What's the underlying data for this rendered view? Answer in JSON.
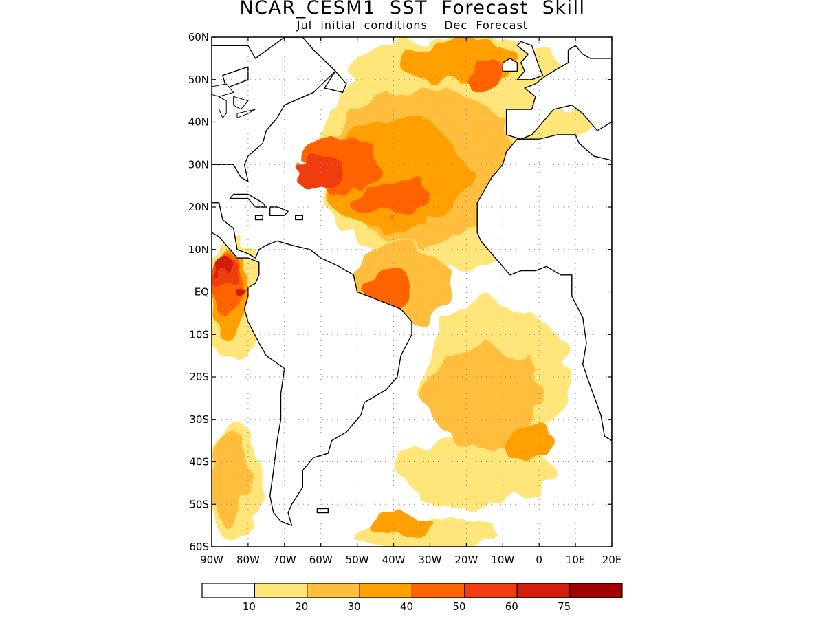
{
  "header": {
    "title": "NCAR_CESM1  SST  Forecast  Skill",
    "subtitle": "Jul  initial  conditions    Dec  Forecast"
  },
  "map": {
    "lon_range": [
      -90,
      20
    ],
    "lat_range": [
      -60,
      60
    ],
    "lat_ticks": [
      {
        "value": 60,
        "label": "60N"
      },
      {
        "value": 50,
        "label": "50N"
      },
      {
        "value": 40,
        "label": "40N"
      },
      {
        "value": 30,
        "label": "30N"
      },
      {
        "value": 20,
        "label": "20N"
      },
      {
        "value": 10,
        "label": "10N"
      },
      {
        "value": 0,
        "label": "EQ"
      },
      {
        "value": -10,
        "label": "10S"
      },
      {
        "value": -20,
        "label": "20S"
      },
      {
        "value": -30,
        "label": "30S"
      },
      {
        "value": -40,
        "label": "40S"
      },
      {
        "value": -50,
        "label": "50S"
      },
      {
        "value": -60,
        "label": "60S"
      }
    ],
    "lon_ticks": [
      {
        "value": -90,
        "label": "90W"
      },
      {
        "value": -80,
        "label": "80W"
      },
      {
        "value": -70,
        "label": "70W"
      },
      {
        "value": -60,
        "label": "60W"
      },
      {
        "value": -50,
        "label": "50W"
      },
      {
        "value": -40,
        "label": "40W"
      },
      {
        "value": -30,
        "label": "30W"
      },
      {
        "value": -20,
        "label": "20W"
      },
      {
        "value": -10,
        "label": "10W"
      },
      {
        "value": 0,
        "label": "0"
      },
      {
        "value": 10,
        "label": "10E"
      },
      {
        "value": 20,
        "label": "20E"
      }
    ],
    "grid": "dotted"
  },
  "colorbar": {
    "levels": [
      "10",
      "20",
      "30",
      "40",
      "50",
      "60",
      "75"
    ],
    "colors": [
      "#ffffff",
      "#ffe57a",
      "#ffbe3c",
      "#ffa000",
      "#ff6400",
      "#f03c10",
      "#d21e0a",
      "#a00000"
    ]
  },
  "skill_regions": [
    {
      "level": 1,
      "lon": -27,
      "lat": 31,
      "rx": 34,
      "ry": 26
    },
    {
      "level": 1,
      "lon": -22,
      "lat": 52,
      "rx": 30,
      "ry": 8
    },
    {
      "level": 1,
      "lon": -12,
      "lat": -20,
      "rx": 20,
      "ry": 18
    },
    {
      "level": 1,
      "lon": -18,
      "lat": -42,
      "rx": 22,
      "ry": 8
    },
    {
      "level": 1,
      "lon": -30,
      "lat": -57,
      "rx": 20,
      "ry": 4
    },
    {
      "level": 1,
      "lon": -84,
      "lat": -2,
      "rx": 8,
      "ry": 14
    },
    {
      "level": 1,
      "lon": -84,
      "lat": -45,
      "rx": 7,
      "ry": 14
    },
    {
      "level": 1,
      "lon": 5,
      "lat": 40,
      "rx": 10,
      "ry": 4
    },
    {
      "level": 2,
      "lon": -32,
      "lat": 30,
      "rx": 26,
      "ry": 18
    },
    {
      "level": 2,
      "lon": -15,
      "lat": -25,
      "rx": 16,
      "ry": 12
    },
    {
      "level": 2,
      "lon": -38,
      "lat": 2,
      "rx": 14,
      "ry": 10
    },
    {
      "level": 2,
      "lon": -85,
      "lat": -44,
      "rx": 5,
      "ry": 11
    },
    {
      "level": 3,
      "lon": -40,
      "lat": 28,
      "rx": 20,
      "ry": 13
    },
    {
      "level": 3,
      "lon": -22,
      "lat": 54,
      "rx": 16,
      "ry": 5
    },
    {
      "level": 3,
      "lon": -85,
      "lat": 0,
      "rx": 5,
      "ry": 10
    },
    {
      "level": 3,
      "lon": -3,
      "lat": -36,
      "rx": 7,
      "ry": 4
    },
    {
      "level": 3,
      "lon": -37,
      "lat": -55,
      "rx": 8,
      "ry": 3
    },
    {
      "level": 4,
      "lon": -55,
      "lat": 30,
      "rx": 10,
      "ry": 7
    },
    {
      "level": 4,
      "lon": -40,
      "lat": 22,
      "rx": 10,
      "ry": 4
    },
    {
      "level": 4,
      "lon": -15,
      "lat": 51,
      "rx": 5,
      "ry": 4
    },
    {
      "level": 4,
      "lon": -42,
      "lat": 0,
      "rx": 6,
      "ry": 5
    },
    {
      "level": 4,
      "lon": -86,
      "lat": 2,
      "rx": 4,
      "ry": 7
    },
    {
      "level": 5,
      "lon": -60,
      "lat": 28,
      "rx": 6,
      "ry": 4
    },
    {
      "level": 5,
      "lon": -86,
      "lat": 4,
      "rx": 3,
      "ry": 3
    },
    {
      "level": 6,
      "lon": -87,
      "lat": 6,
      "rx": 2,
      "ry": 2
    },
    {
      "level": 6,
      "lon": -83,
      "lat": 0,
      "rx": 1.5,
      "ry": 1
    }
  ],
  "land_polygons": [
    [
      [
        -90,
        58
      ],
      [
        -80,
        58
      ],
      [
        -78,
        55
      ],
      [
        -70,
        60
      ],
      [
        -65,
        60
      ],
      [
        -62,
        57
      ],
      [
        -56,
        52
      ],
      [
        -62,
        47
      ],
      [
        -70,
        44
      ],
      [
        -72,
        41
      ],
      [
        -75,
        38
      ],
      [
        -76,
        35
      ],
      [
        -80,
        32
      ],
      [
        -81,
        30
      ],
      [
        -80,
        26
      ],
      [
        -82,
        27
      ],
      [
        -84,
        30
      ],
      [
        -90,
        30
      ]
    ],
    [
      [
        -90,
        21
      ],
      [
        -88,
        21
      ],
      [
        -87,
        17
      ],
      [
        -84,
        15
      ],
      [
        -83,
        10
      ],
      [
        -80,
        9
      ],
      [
        -78,
        8
      ],
      [
        -77,
        10
      ],
      [
        -75,
        11
      ],
      [
        -72,
        12
      ],
      [
        -68,
        11
      ],
      [
        -63,
        10
      ],
      [
        -60,
        8
      ],
      [
        -55,
        6
      ],
      [
        -51,
        4
      ],
      [
        -50,
        0
      ],
      [
        -44,
        -2
      ],
      [
        -38,
        -4
      ],
      [
        -35,
        -7
      ],
      [
        -35,
        -10
      ],
      [
        -38,
        -15
      ],
      [
        -39,
        -20
      ],
      [
        -42,
        -23
      ],
      [
        -48,
        -26
      ],
      [
        -49,
        -29
      ],
      [
        -53,
        -33
      ],
      [
        -57,
        -35
      ],
      [
        -58,
        -38
      ],
      [
        -62,
        -39
      ],
      [
        -65,
        -42
      ],
      [
        -65,
        -46
      ],
      [
        -68,
        -50
      ],
      [
        -69,
        -52
      ],
      [
        -68,
        -55
      ],
      [
        -71,
        -54
      ],
      [
        -73,
        -52
      ],
      [
        -74,
        -48
      ],
      [
        -73,
        -42
      ],
      [
        -72,
        -35
      ],
      [
        -71,
        -30
      ],
      [
        -71,
        -24
      ],
      [
        -70,
        -18
      ],
      [
        -75,
        -15
      ],
      [
        -77,
        -12
      ],
      [
        -80,
        -7
      ],
      [
        -81,
        -4
      ],
      [
        -80,
        -1
      ],
      [
        -80,
        1
      ],
      [
        -78,
        2
      ],
      [
        -77,
        4
      ],
      [
        -77,
        7
      ],
      [
        -80,
        8
      ],
      [
        -83,
        8
      ],
      [
        -86,
        11
      ],
      [
        -88,
        13
      ],
      [
        -90,
        14
      ]
    ],
    [
      [
        -17,
        14
      ],
      [
        -17,
        21
      ],
      [
        -13,
        27
      ],
      [
        -10,
        30
      ],
      [
        -9,
        33
      ],
      [
        -6,
        36
      ],
      [
        0,
        36
      ],
      [
        5,
        37
      ],
      [
        10,
        37
      ],
      [
        11,
        35
      ],
      [
        15,
        32
      ],
      [
        20,
        31
      ],
      [
        20,
        -35
      ],
      [
        18,
        -34
      ],
      [
        17,
        -29
      ],
      [
        14,
        -22
      ],
      [
        12,
        -17
      ],
      [
        13,
        -12
      ],
      [
        12,
        -6
      ],
      [
        9,
        -1
      ],
      [
        9,
        4
      ],
      [
        6,
        4
      ],
      [
        2,
        6
      ],
      [
        -1,
        5
      ],
      [
        -5,
        5
      ],
      [
        -8,
        4
      ],
      [
        -11,
        7
      ],
      [
        -14,
        10
      ],
      [
        -16,
        12
      ]
    ],
    [
      [
        -9,
        37
      ],
      [
        -9,
        43
      ],
      [
        -2,
        43
      ],
      [
        -1,
        46
      ],
      [
        -4,
        48
      ],
      [
        -1,
        49
      ],
      [
        2,
        51
      ],
      [
        4,
        52
      ],
      [
        8,
        54
      ],
      [
        8,
        57
      ],
      [
        10,
        58
      ],
      [
        12,
        56
      ],
      [
        14,
        55
      ],
      [
        20,
        55
      ],
      [
        20,
        40
      ],
      [
        16,
        38
      ],
      [
        12,
        42
      ],
      [
        9,
        44
      ],
      [
        4,
        43
      ],
      [
        3,
        42
      ],
      [
        0,
        39
      ],
      [
        -2,
        37
      ],
      [
        -5,
        36
      ]
    ],
    [
      [
        -6,
        50
      ],
      [
        -4,
        52
      ],
      [
        -5,
        54
      ],
      [
        -3,
        56
      ],
      [
        -6,
        58
      ],
      [
        -5,
        59
      ],
      [
        -2,
        58
      ],
      [
        0,
        53
      ],
      [
        1,
        51
      ],
      [
        -2,
        50
      ]
    ],
    [
      [
        -10,
        52
      ],
      [
        -10,
        54
      ],
      [
        -8,
        55
      ],
      [
        -6,
        54
      ],
      [
        -6,
        52
      ]
    ],
    [
      [
        -54,
        47
      ],
      [
        -53,
        49
      ],
      [
        -56,
        52
      ],
      [
        -59,
        48
      ]
    ],
    [
      [
        -85,
        22
      ],
      [
        -84,
        23
      ],
      [
        -80,
        23
      ],
      [
        -76,
        21
      ],
      [
        -75,
        20
      ],
      [
        -78,
        20
      ],
      [
        -80,
        22
      ]
    ],
    [
      [
        -74,
        20
      ],
      [
        -72,
        20
      ],
      [
        -69,
        19
      ],
      [
        -70,
        18
      ],
      [
        -74,
        18
      ]
    ],
    [
      [
        -78,
        18
      ],
      [
        -76,
        18
      ],
      [
        -76,
        17
      ],
      [
        -78,
        17
      ]
    ],
    [
      [
        -67,
        18
      ],
      [
        -65,
        18
      ],
      [
        -65,
        17
      ],
      [
        -67,
        17
      ]
    ],
    [
      [
        -25,
        65
      ],
      [
        -13,
        65
      ],
      [
        -15,
        63
      ],
      [
        -20,
        63
      ]
    ],
    [
      [
        -61,
        -51
      ],
      [
        -58,
        -51
      ],
      [
        -58,
        -52
      ],
      [
        -61,
        -52
      ]
    ],
    [
      [
        -87,
        51
      ],
      [
        -80,
        53
      ],
      [
        -80,
        50
      ],
      [
        -86,
        48
      ]
    ]
  ],
  "lake_polygons": [
    [
      [
        -92,
        48
      ],
      [
        -86,
        49
      ],
      [
        -84,
        47
      ],
      [
        -88,
        46
      ],
      [
        -92,
        47
      ]
    ],
    [
      [
        -88,
        46
      ],
      [
        -86,
        45
      ],
      [
        -86,
        42
      ],
      [
        -87,
        41
      ],
      [
        -88,
        43
      ]
    ],
    [
      [
        -84,
        46
      ],
      [
        -80,
        45
      ],
      [
        -82,
        43
      ],
      [
        -84,
        44
      ]
    ],
    [
      [
        -83,
        42
      ],
      [
        -78,
        43
      ],
      [
        -80,
        42
      ],
      [
        -83,
        41
      ]
    ]
  ]
}
